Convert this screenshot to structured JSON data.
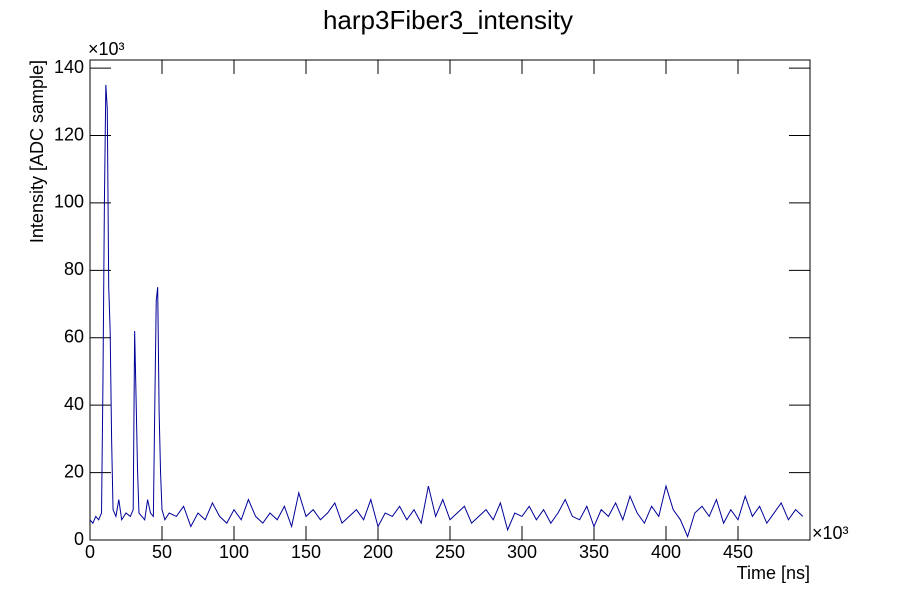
{
  "chart_data": {
    "type": "line",
    "title": "harp3Fiber3_intensity",
    "x_label": "Time [ns]",
    "y_label": "Intensity [ADC sample]",
    "x_multiplier": "×10³",
    "y_multiplier": "×10³",
    "xlim": [
      0,
      500
    ],
    "ylim": [
      0,
      142.4
    ],
    "xticks": [
      0,
      50,
      100,
      150,
      200,
      250,
      300,
      350,
      400,
      450
    ],
    "yticks": [
      0,
      20,
      40,
      60,
      80,
      100,
      120,
      140
    ],
    "series": [
      {
        "color": "#000099",
        "x": [
          0,
          2,
          4,
          6,
          8,
          9,
          10,
          11,
          12,
          13,
          14,
          15,
          16,
          18,
          20,
          22,
          25,
          28,
          30,
          31,
          32,
          33,
          34,
          36,
          38,
          40,
          42,
          44,
          45,
          46,
          47,
          48,
          49,
          50,
          52,
          55,
          60,
          65,
          70,
          75,
          80,
          85,
          90,
          95,
          100,
          105,
          110,
          115,
          120,
          125,
          130,
          135,
          140,
          145,
          150,
          155,
          160,
          165,
          170,
          175,
          180,
          185,
          190,
          195,
          200,
          205,
          210,
          215,
          220,
          225,
          230,
          235,
          240,
          245,
          250,
          255,
          260,
          265,
          270,
          275,
          280,
          285,
          290,
          295,
          300,
          305,
          310,
          315,
          320,
          325,
          330,
          335,
          340,
          345,
          350,
          355,
          360,
          365,
          370,
          375,
          380,
          385,
          390,
          395,
          400,
          405,
          410,
          415,
          420,
          425,
          430,
          435,
          440,
          445,
          450,
          455,
          460,
          465,
          470,
          475,
          480,
          485,
          490,
          495
        ],
        "values": [
          6,
          5,
          7,
          6,
          8,
          47,
          100,
          135,
          128,
          75,
          62,
          30,
          9,
          7,
          12,
          6,
          8,
          7,
          9,
          62,
          42,
          21,
          8,
          7,
          6,
          12,
          8,
          7,
          40,
          71,
          75,
          38,
          20,
          9,
          6,
          8,
          7,
          10,
          4,
          8,
          6,
          11,
          7,
          5,
          9,
          6,
          12,
          7,
          5,
          8,
          6,
          10,
          4,
          14,
          7,
          9,
          6,
          8,
          11,
          5,
          7,
          9,
          6,
          12,
          4,
          8,
          7,
          10,
          6,
          9,
          5,
          16,
          7,
          12,
          6,
          8,
          10,
          5,
          7,
          9,
          6,
          11,
          3,
          8,
          7,
          10,
          6,
          9,
          5,
          8,
          12,
          7,
          6,
          10,
          4,
          9,
          7,
          11,
          6,
          13,
          8,
          5,
          10,
          7,
          16,
          9,
          6,
          1,
          8,
          10,
          7,
          12,
          5,
          9,
          6,
          13,
          7,
          10,
          5,
          8,
          11,
          6,
          9,
          7
        ]
      }
    ]
  }
}
